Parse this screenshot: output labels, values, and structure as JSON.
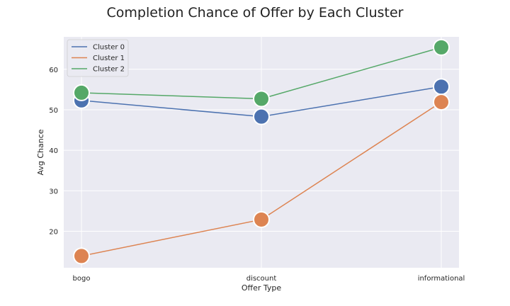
{
  "chart_data": {
    "type": "line",
    "title": "Completion Chance of Offer by Each Cluster",
    "xlabel": "Offer Type",
    "ylabel": "Avg Chance",
    "categories": [
      "bogo",
      "discount",
      "informational"
    ],
    "ylim": [
      11,
      68
    ],
    "yticks": [
      20,
      30,
      40,
      50,
      60
    ],
    "grid": true,
    "legend_position": "top-left",
    "series": [
      {
        "name": "Cluster 0",
        "color": "#4c72b0",
        "values": [
          52.3,
          48.3,
          55.7
        ]
      },
      {
        "name": "Cluster 1",
        "color": "#dd8452",
        "values": [
          13.9,
          22.9,
          51.9
        ]
      },
      {
        "name": "Cluster 2",
        "color": "#55a868",
        "values": [
          54.2,
          52.7,
          65.4
        ]
      }
    ]
  }
}
